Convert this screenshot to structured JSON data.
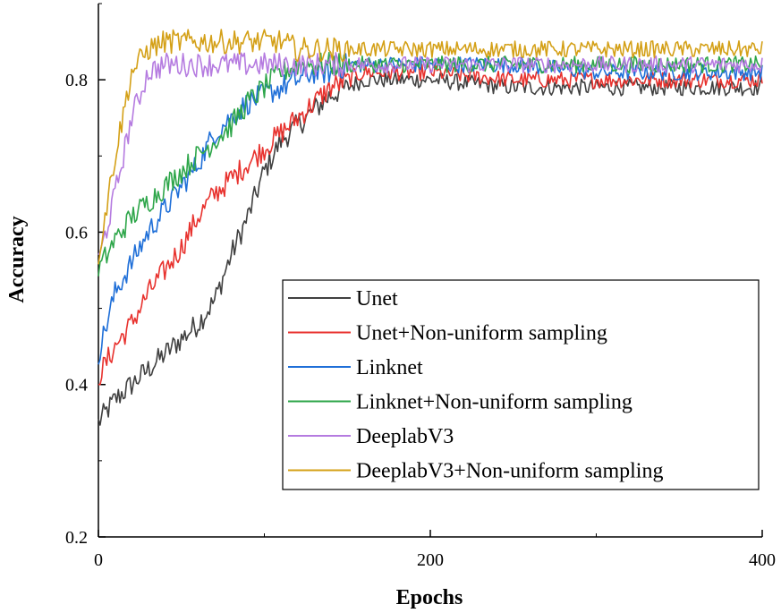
{
  "chart_data": {
    "type": "line",
    "title": "",
    "xlabel": "Epochs",
    "ylabel": "Accuracy",
    "xlim": [
      0,
      400
    ],
    "ylim": [
      0.2,
      0.9
    ],
    "xticks": [
      0,
      200,
      400
    ],
    "xtick_labels": [
      "0",
      "200",
      "400"
    ],
    "yticks": [
      0.2,
      0.4,
      0.6,
      0.8
    ],
    "ytick_labels": [
      "0.2",
      "0.4",
      "0.6",
      "0.8"
    ],
    "grid": false,
    "legend_position": "bottom-right",
    "x": [
      0,
      10,
      20,
      30,
      40,
      50,
      60,
      70,
      80,
      90,
      100,
      110,
      120,
      130,
      140,
      150,
      160,
      180,
      200,
      250,
      300,
      350,
      400
    ],
    "series": [
      {
        "name": "Unet",
        "color": "#404040",
        "values": [
          0.35,
          0.38,
          0.4,
          0.42,
          0.44,
          0.46,
          0.48,
          0.51,
          0.57,
          0.62,
          0.68,
          0.72,
          0.74,
          0.76,
          0.78,
          0.79,
          0.8,
          0.8,
          0.8,
          0.79,
          0.79,
          0.79,
          0.79
        ]
      },
      {
        "name": "Unet+Non-uniform sampling",
        "color": "#e8322e",
        "values": [
          0.41,
          0.45,
          0.48,
          0.52,
          0.55,
          0.58,
          0.62,
          0.65,
          0.67,
          0.69,
          0.71,
          0.73,
          0.75,
          0.77,
          0.79,
          0.8,
          0.81,
          0.81,
          0.81,
          0.8,
          0.8,
          0.8,
          0.8
        ]
      },
      {
        "name": "Linknet",
        "color": "#1f6fd8",
        "values": [
          0.44,
          0.52,
          0.56,
          0.6,
          0.63,
          0.66,
          0.69,
          0.73,
          0.75,
          0.77,
          0.78,
          0.79,
          0.8,
          0.81,
          0.81,
          0.82,
          0.82,
          0.82,
          0.82,
          0.82,
          0.81,
          0.81,
          0.81
        ]
      },
      {
        "name": "Linknet+Non-uniform sampling",
        "color": "#2ea64a",
        "values": [
          0.55,
          0.59,
          0.62,
          0.64,
          0.66,
          0.68,
          0.7,
          0.72,
          0.74,
          0.77,
          0.79,
          0.81,
          0.82,
          0.82,
          0.82,
          0.82,
          0.82,
          0.82,
          0.82,
          0.82,
          0.82,
          0.82,
          0.82
        ]
      },
      {
        "name": "DeeplabV3",
        "color": "#b57be0",
        "values": [
          0.56,
          0.65,
          0.75,
          0.81,
          0.82,
          0.82,
          0.82,
          0.82,
          0.82,
          0.82,
          0.82,
          0.82,
          0.82,
          0.82,
          0.82,
          0.82,
          0.82,
          0.82,
          0.82,
          0.82,
          0.82,
          0.82,
          0.82
        ]
      },
      {
        "name": "DeeplabV3+Non-uniform sampling",
        "color": "#d4a017",
        "values": [
          0.57,
          0.7,
          0.81,
          0.84,
          0.85,
          0.85,
          0.85,
          0.85,
          0.85,
          0.85,
          0.85,
          0.85,
          0.84,
          0.84,
          0.84,
          0.84,
          0.84,
          0.84,
          0.84,
          0.84,
          0.84,
          0.84,
          0.84
        ]
      }
    ]
  }
}
